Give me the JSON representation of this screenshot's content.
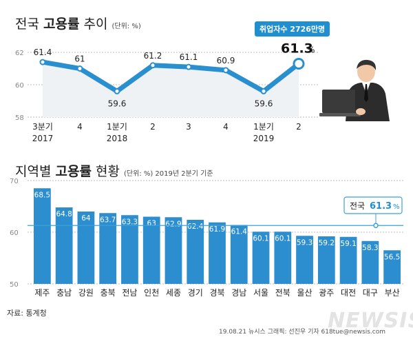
{
  "colors": {
    "line": "#2a8fcf",
    "bar": "#2d8ecf",
    "callout": "#1f8fd0",
    "refline": "#3aa0dc"
  },
  "chart_data": [
    {
      "type": "line",
      "title_pre": "전국 ",
      "title_bold": "고용률",
      "title_post": " 추이",
      "unit": "(단위: %)",
      "ylim": [
        58,
        62
      ],
      "yticks": [
        58,
        60,
        62
      ],
      "quarters": [
        "3분기",
        "4",
        "1분기",
        "2",
        "3",
        "4",
        "1분기",
        "2"
      ],
      "years": [
        "2017",
        "",
        "2018",
        "",
        "",
        "",
        "2019",
        ""
      ],
      "values": [
        61.4,
        61.0,
        59.6,
        61.2,
        61.1,
        60.9,
        59.6,
        61.3
      ],
      "value_labels": [
        "61.4",
        "61",
        "59.6",
        "61.2",
        "61.1",
        "60.9",
        "59.6",
        "61.3"
      ],
      "last_value_suffix": "%",
      "callout": "취업자수 2726만명",
      "grid": true
    },
    {
      "type": "bar",
      "title_pre": "지역별 ",
      "title_bold": "고용률",
      "title_post": " 현황",
      "unit": "(단위: %)   2019년 2분기 기준",
      "ylim": [
        50,
        70
      ],
      "yticks": [
        50,
        60,
        70
      ],
      "categories": [
        "제주",
        "충남",
        "강원",
        "충북",
        "전남",
        "인천",
        "세종",
        "경기",
        "경북",
        "경남",
        "서울",
        "전북",
        "울산",
        "광주",
        "대전",
        "대구",
        "부산"
      ],
      "values": [
        68.5,
        64.8,
        64.0,
        63.7,
        63.3,
        63.0,
        62.9,
        62.4,
        61.9,
        61.4,
        60.1,
        60.1,
        59.3,
        59.2,
        59.1,
        58.3,
        56.5
      ],
      "value_labels": [
        "68.5",
        "64.8",
        "64",
        "63.7",
        "63.3",
        "63",
        "62.9",
        "62.4",
        "61.9",
        "61.4",
        "60.1",
        "60.1",
        "59.3",
        "59.2",
        "59.1",
        "58.3",
        "56.5"
      ],
      "reference": {
        "label": "전국 ",
        "value": 61.3,
        "value_label": "61.3",
        "suffix": "%"
      }
    }
  ],
  "source": "자료: 통계청",
  "credit": "19.08.21  뉴시스 그래픽: 선진우 기자  618tue@newsis.com",
  "watermark": "NEWSIS"
}
